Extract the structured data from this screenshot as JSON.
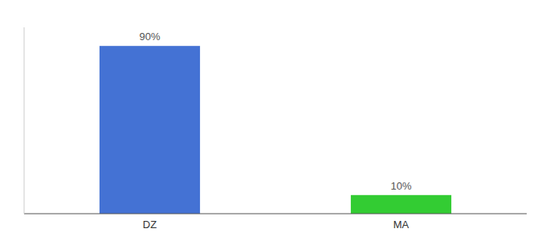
{
  "chart_data": {
    "type": "bar",
    "categories": [
      "DZ",
      "MA"
    ],
    "values": [
      90,
      10
    ],
    "value_labels": [
      "90%",
      "10%"
    ],
    "colors": [
      "#4472d4",
      "#33cc33"
    ],
    "ylim": [
      0,
      100
    ],
    "data_labels": true,
    "tick_labels": "x"
  }
}
